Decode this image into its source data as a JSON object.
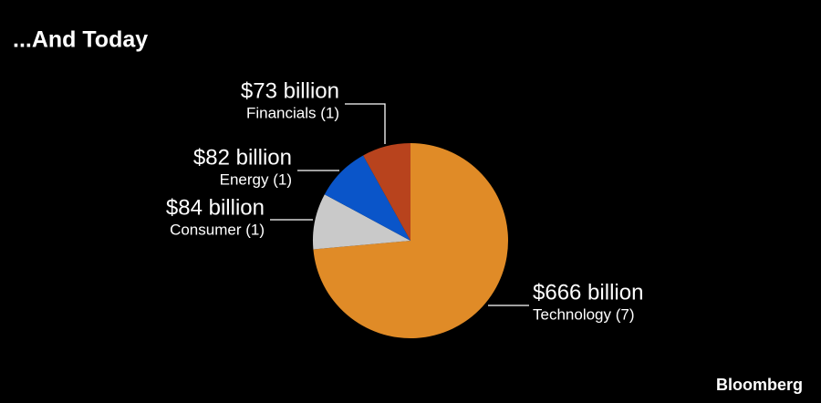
{
  "chart_data": {
    "type": "pie",
    "title": "...And Today",
    "categories": [
      "Technology (7)",
      "Consumer (1)",
      "Energy (1)",
      "Financials (1)"
    ],
    "values": [
      666,
      84,
      82,
      73
    ],
    "value_labels": [
      "$666 billion",
      "$84 billion",
      "$82 billion",
      "$73 billion"
    ],
    "colors": [
      "#e08b27",
      "#c9c9c9",
      "#0a55c9",
      "#b8431d"
    ],
    "source": "Bloomberg"
  }
}
